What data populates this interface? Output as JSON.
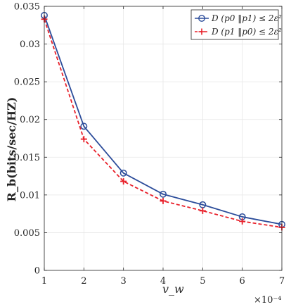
{
  "chart_data": {
    "type": "line",
    "x": [
      1,
      2,
      3,
      4,
      5,
      6,
      7
    ],
    "series": [
      {
        "name": "D (p0 ‖p1) ≤ 2ε²",
        "values": [
          0.0338,
          0.0191,
          0.0129,
          0.0101,
          0.0087,
          0.0071,
          0.0061
        ],
        "color": "#2b4c9a",
        "line_style": "solid",
        "marker": "circle"
      },
      {
        "name": "D (p1 ‖p0) ≤ 2ε²",
        "values": [
          0.0333,
          0.0174,
          0.0118,
          0.0092,
          0.0079,
          0.0065,
          0.0057
        ],
        "color": "#e8202a",
        "line_style": "dashed",
        "marker": "plus"
      }
    ],
    "title": "",
    "xlabel": "v_w",
    "ylabel": "R_b(bits/sec/HZ)",
    "x_multiplier": "×10⁻⁴",
    "xlim": [
      1,
      7
    ],
    "ylim": [
      0,
      0.035
    ],
    "x_ticks": [
      "1",
      "2",
      "3",
      "4",
      "5",
      "6",
      "7"
    ],
    "y_ticks": [
      "0",
      "0.005",
      "0.01",
      "0.015",
      "0.02",
      "0.025",
      "0.03",
      "0.035"
    ],
    "grid": true,
    "legend_position": "top-right"
  }
}
